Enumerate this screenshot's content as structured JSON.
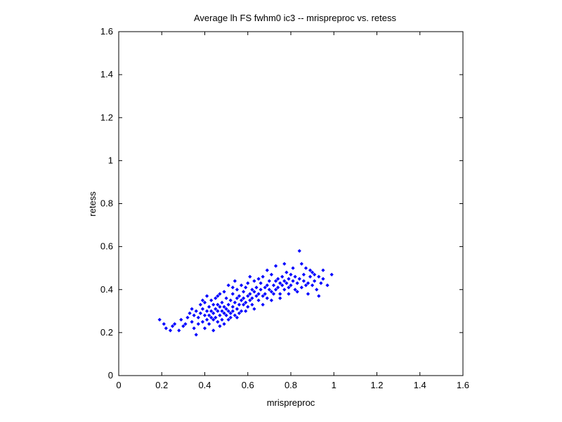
{
  "chart_data": {
    "type": "scatter",
    "title": "Average lh FS fwhm0 ic3 -- mrispreproc vs. retess",
    "xlabel": "mrispreproc",
    "ylabel": "retess",
    "xlim": [
      0,
      1.6
    ],
    "ylim": [
      0,
      1.6
    ],
    "x_ticks": [
      "0",
      "0.2",
      "0.4",
      "0.6",
      "0.8",
      "1",
      "1.2",
      "1.4",
      "1.6"
    ],
    "y_ticks": [
      "0",
      "0.2",
      "0.4",
      "0.6",
      "0.8",
      "1",
      "1.2",
      "1.4",
      "1.6"
    ],
    "grid": false,
    "marker_color": "#0000ff",
    "points": [
      [
        0.19,
        0.26
      ],
      [
        0.21,
        0.24
      ],
      [
        0.22,
        0.22
      ],
      [
        0.24,
        0.21
      ],
      [
        0.25,
        0.23
      ],
      [
        0.26,
        0.24
      ],
      [
        0.28,
        0.21
      ],
      [
        0.3,
        0.23
      ],
      [
        0.32,
        0.27
      ],
      [
        0.33,
        0.29
      ],
      [
        0.34,
        0.25
      ],
      [
        0.35,
        0.22
      ],
      [
        0.35,
        0.28
      ],
      [
        0.36,
        0.19
      ],
      [
        0.36,
        0.3
      ],
      [
        0.37,
        0.24
      ],
      [
        0.37,
        0.27
      ],
      [
        0.38,
        0.33
      ],
      [
        0.38,
        0.29
      ],
      [
        0.39,
        0.25
      ],
      [
        0.39,
        0.31
      ],
      [
        0.4,
        0.28
      ],
      [
        0.4,
        0.22
      ],
      [
        0.4,
        0.34
      ],
      [
        0.41,
        0.3
      ],
      [
        0.41,
        0.26
      ],
      [
        0.42,
        0.32
      ],
      [
        0.42,
        0.28
      ],
      [
        0.42,
        0.24
      ],
      [
        0.43,
        0.35
      ],
      [
        0.43,
        0.3
      ],
      [
        0.43,
        0.27
      ],
      [
        0.44,
        0.33
      ],
      [
        0.44,
        0.29
      ],
      [
        0.44,
        0.21
      ],
      [
        0.45,
        0.31
      ],
      [
        0.45,
        0.27
      ],
      [
        0.45,
        0.36
      ],
      [
        0.46,
        0.3
      ],
      [
        0.46,
        0.25
      ],
      [
        0.46,
        0.33
      ],
      [
        0.47,
        0.28
      ],
      [
        0.47,
        0.32
      ],
      [
        0.47,
        0.38
      ],
      [
        0.48,
        0.3
      ],
      [
        0.48,
        0.26
      ],
      [
        0.48,
        0.34
      ],
      [
        0.49,
        0.29
      ],
      [
        0.49,
        0.32
      ],
      [
        0.49,
        0.24
      ],
      [
        0.5,
        0.36
      ],
      [
        0.5,
        0.31
      ],
      [
        0.5,
        0.28
      ],
      [
        0.51,
        0.33
      ],
      [
        0.51,
        0.3
      ],
      [
        0.51,
        0.42
      ],
      [
        0.52,
        0.35
      ],
      [
        0.52,
        0.29
      ],
      [
        0.52,
        0.27
      ],
      [
        0.53,
        0.38
      ],
      [
        0.53,
        0.32
      ],
      [
        0.53,
        0.3
      ],
      [
        0.54,
        0.34
      ],
      [
        0.54,
        0.28
      ],
      [
        0.54,
        0.44
      ],
      [
        0.55,
        0.36
      ],
      [
        0.55,
        0.31
      ],
      [
        0.55,
        0.4
      ],
      [
        0.56,
        0.33
      ],
      [
        0.56,
        0.29
      ],
      [
        0.56,
        0.37
      ],
      [
        0.57,
        0.35
      ],
      [
        0.57,
        0.3
      ],
      [
        0.58,
        0.39
      ],
      [
        0.58,
        0.33
      ],
      [
        0.58,
        0.36
      ],
      [
        0.59,
        0.41
      ],
      [
        0.59,
        0.34
      ],
      [
        0.6,
        0.37
      ],
      [
        0.6,
        0.32
      ],
      [
        0.6,
        0.43
      ],
      [
        0.61,
        0.38
      ],
      [
        0.61,
        0.35
      ],
      [
        0.62,
        0.4
      ],
      [
        0.62,
        0.36
      ],
      [
        0.62,
        0.33
      ],
      [
        0.63,
        0.39
      ],
      [
        0.63,
        0.44
      ],
      [
        0.64,
        0.37
      ],
      [
        0.64,
        0.41
      ],
      [
        0.65,
        0.38
      ],
      [
        0.65,
        0.35
      ],
      [
        0.66,
        0.4
      ],
      [
        0.66,
        0.43
      ],
      [
        0.67,
        0.37
      ],
      [
        0.67,
        0.46
      ],
      [
        0.68,
        0.41
      ],
      [
        0.68,
        0.38
      ],
      [
        0.69,
        0.42
      ],
      [
        0.69,
        0.36
      ],
      [
        0.7,
        0.4
      ],
      [
        0.7,
        0.44
      ],
      [
        0.71,
        0.39
      ],
      [
        0.71,
        0.47
      ],
      [
        0.72,
        0.42
      ],
      [
        0.72,
        0.38
      ],
      [
        0.73,
        0.44
      ],
      [
        0.73,
        0.4
      ],
      [
        0.74,
        0.45
      ],
      [
        0.74,
        0.41
      ],
      [
        0.75,
        0.43
      ],
      [
        0.75,
        0.38
      ],
      [
        0.76,
        0.46
      ],
      [
        0.76,
        0.42
      ],
      [
        0.77,
        0.44
      ],
      [
        0.77,
        0.4
      ],
      [
        0.78,
        0.48
      ],
      [
        0.78,
        0.43
      ],
      [
        0.79,
        0.41
      ],
      [
        0.79,
        0.45
      ],
      [
        0.8,
        0.42
      ],
      [
        0.8,
        0.47
      ],
      [
        0.81,
        0.44
      ],
      [
        0.82,
        0.4
      ],
      [
        0.82,
        0.46
      ],
      [
        0.83,
        0.43
      ],
      [
        0.84,
        0.58
      ],
      [
        0.84,
        0.45
      ],
      [
        0.85,
        0.41
      ],
      [
        0.86,
        0.47
      ],
      [
        0.86,
        0.44
      ],
      [
        0.87,
        0.5
      ],
      [
        0.88,
        0.43
      ],
      [
        0.88,
        0.38
      ],
      [
        0.89,
        0.46
      ],
      [
        0.9,
        0.42
      ],
      [
        0.9,
        0.48
      ],
      [
        0.91,
        0.44
      ],
      [
        0.92,
        0.4
      ],
      [
        0.93,
        0.46
      ],
      [
        0.94,
        0.43
      ],
      [
        0.95,
        0.49
      ],
      [
        0.97,
        0.42
      ],
      [
        0.99,
        0.47
      ],
      [
        0.29,
        0.26
      ],
      [
        0.31,
        0.24
      ],
      [
        0.34,
        0.31
      ],
      [
        0.39,
        0.35
      ],
      [
        0.41,
        0.37
      ],
      [
        0.44,
        0.26
      ],
      [
        0.46,
        0.37
      ],
      [
        0.47,
        0.23
      ],
      [
        0.49,
        0.39
      ],
      [
        0.51,
        0.26
      ],
      [
        0.53,
        0.41
      ],
      [
        0.55,
        0.27
      ],
      [
        0.57,
        0.42
      ],
      [
        0.59,
        0.3
      ],
      [
        0.61,
        0.46
      ],
      [
        0.63,
        0.31
      ],
      [
        0.65,
        0.45
      ],
      [
        0.67,
        0.33
      ],
      [
        0.69,
        0.49
      ],
      [
        0.71,
        0.35
      ],
      [
        0.73,
        0.51
      ],
      [
        0.75,
        0.36
      ],
      [
        0.77,
        0.52
      ],
      [
        0.79,
        0.38
      ],
      [
        0.81,
        0.5
      ],
      [
        0.83,
        0.39
      ],
      [
        0.85,
        0.52
      ],
      [
        0.87,
        0.42
      ],
      [
        0.89,
        0.49
      ],
      [
        0.91,
        0.47
      ],
      [
        0.93,
        0.37
      ],
      [
        0.95,
        0.45
      ]
    ]
  }
}
